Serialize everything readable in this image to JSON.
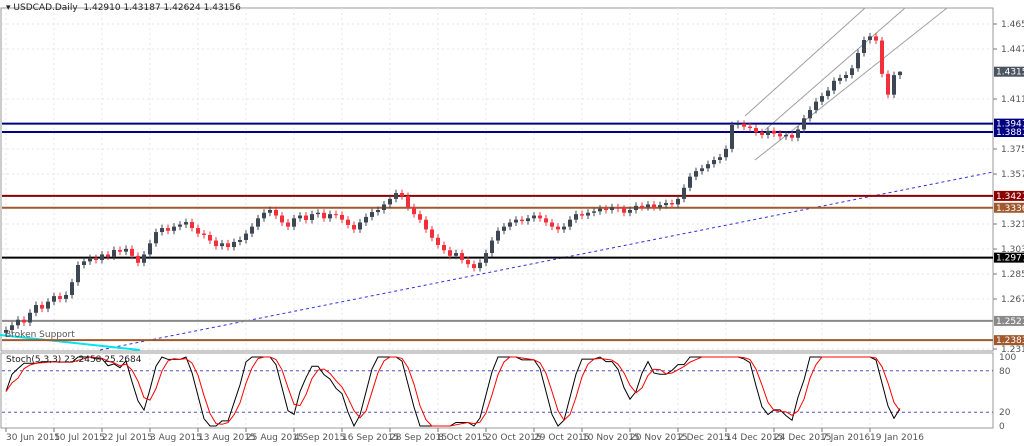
{
  "header": {
    "symbol": "USDCAD.Daily",
    "ohlc_text": "1.42910 1.43187 1.42624 1.43156"
  },
  "colors": {
    "bull": "#3d4753",
    "bear": "#f2303c",
    "stoch_main": "#000000",
    "stoch_signal": "#ff0000",
    "trendline": "#3030e0",
    "channel": "#a0a0a0",
    "broken_support": "#00e5ee"
  },
  "chart_data": {
    "type": "candlestick",
    "title": "USDCAD.Daily",
    "last_bar": {
      "open": 1.4291,
      "high": 1.43187,
      "low": 1.42624,
      "close": 1.43156
    },
    "ylim": [
      1.223,
      1.475
    ],
    "grid": true,
    "y_ticks": [
      "1.46590",
      "1.44790",
      "1.41190",
      "1.37590",
      "1.35790",
      "1.32190",
      "1.30390",
      "1.28590",
      "1.26790",
      "1.23190"
    ],
    "x_ticks": [
      "30 Jun 2015",
      "10 Jul 2015",
      "22 Jul 2015",
      "3 Aug 2015",
      "13 Aug 2015",
      "25 Aug 2015",
      "4 Sep 2015",
      "16 Sep 2015",
      "28 Sep 2015",
      "8 Oct 2015",
      "20 Oct 2015",
      "29 Oct 2015",
      "10 Nov 2015",
      "20 Nov 2015",
      "2 Dec 2015",
      "14 Dec 2015",
      "24 Dec 2015",
      "7 Jan 2016",
      "19 Jan 2016"
    ],
    "closes": [
      1.2456,
      1.249,
      1.253,
      1.251,
      1.258,
      1.2636,
      1.261,
      1.266,
      1.27,
      1.268,
      1.2708,
      1.28,
      1.2924,
      1.295,
      1.2974,
      1.296,
      1.3,
      1.2985,
      1.3032,
      1.302,
      1.304,
      1.299,
      1.294,
      1.3,
      1.308,
      1.3161,
      1.319,
      1.317,
      1.32,
      1.3215,
      1.3233,
      1.319,
      1.315,
      1.314,
      1.31,
      1.306,
      1.308,
      1.3053,
      1.309,
      1.3104,
      1.315,
      1.32,
      1.326,
      1.33,
      1.332,
      1.328,
      1.323,
      1.32,
      1.326,
      1.328,
      1.3248,
      1.329,
      1.33,
      1.326,
      1.329,
      1.3284,
      1.325,
      1.3212,
      1.318,
      1.323,
      1.327,
      1.3305,
      1.332,
      1.336,
      1.34,
      1.3442,
      1.342,
      1.334,
      1.329,
      1.325,
      1.318,
      1.312,
      1.3068,
      1.303,
      1.299,
      1.301,
      1.296,
      1.293,
      1.2902,
      1.294,
      1.301,
      1.31,
      1.317,
      1.32,
      1.323,
      1.325,
      1.324,
      1.326,
      1.328,
      1.326,
      1.323,
      1.32,
      1.318,
      1.32,
      1.325,
      1.329,
      1.328,
      1.33,
      1.331,
      1.333,
      1.332,
      1.334,
      1.333,
      1.33,
      1.332,
      1.335,
      1.334,
      1.336,
      1.334,
      1.3355,
      1.337,
      1.336,
      1.34,
      1.348,
      1.356,
      1.36,
      1.362,
      1.365,
      1.368,
      1.37,
      1.376,
      1.3932,
      1.394,
      1.392,
      1.391,
      1.388,
      1.386,
      1.389,
      1.387,
      1.385,
      1.386,
      1.384,
      1.39,
      1.398,
      1.404,
      1.41,
      1.414,
      1.418,
      1.425,
      1.427,
      1.4292,
      1.434,
      1.445,
      1.4544,
      1.457,
      1.454,
      1.43,
      1.415,
      1.4291,
      1.43156
    ],
    "levels": [
      {
        "value": "1.39418",
        "color": "#000080"
      },
      {
        "value": "1.38814",
        "color": "#000080"
      },
      {
        "value": "1.34215",
        "color": "#8b0000"
      },
      {
        "value": "1.33360",
        "color": "#a0582d"
      },
      {
        "value": "1.29770",
        "color": "#000000"
      },
      {
        "value": "1.25213",
        "color": "#8a8a8a"
      },
      {
        "value": "1.23830",
        "color": "#a0582d"
      }
    ],
    "current_price_label": "1.43156",
    "annotation": "Broken Support",
    "stochastic": {
      "label": "Stoch(5,3,3) 23.2458 25.2684",
      "levels": [
        "80",
        "20"
      ],
      "axis_labels": [
        "100",
        "80",
        "20",
        "0"
      ]
    }
  }
}
